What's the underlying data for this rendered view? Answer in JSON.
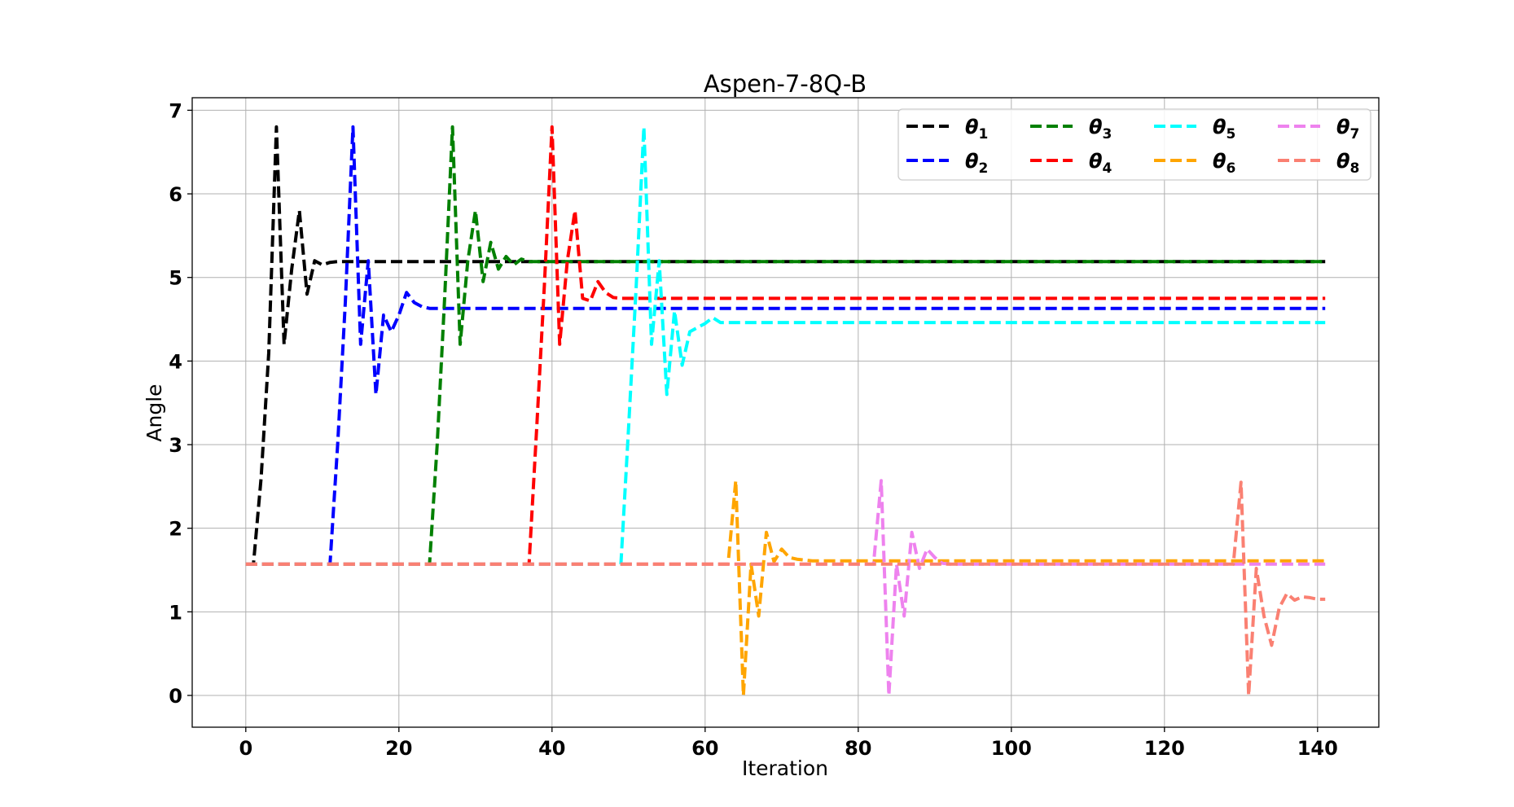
{
  "chart_data": {
    "type": "line",
    "title": "Aspen-7-8Q-B",
    "xlabel": "Iteration",
    "ylabel": "Angle",
    "xlim": [
      -7,
      148
    ],
    "ylim": [
      -0.38,
      7.15
    ],
    "xticks": [
      0,
      20,
      40,
      60,
      80,
      100,
      120,
      140
    ],
    "yticks": [
      0,
      1,
      2,
      3,
      4,
      5,
      6,
      7
    ],
    "grid": true,
    "line_style": "dashed",
    "legend": {
      "placement": "top-right",
      "columns": 4
    },
    "series": [
      {
        "name": "θ1",
        "base": "θ",
        "sub": "1",
        "color": "#000000",
        "points": [
          [
            0,
            1.57
          ],
          [
            1,
            1.57
          ],
          [
            2,
            2.6
          ],
          [
            3,
            4.1
          ],
          [
            4,
            6.8
          ],
          [
            5,
            4.2
          ],
          [
            6,
            5.1
          ],
          [
            7,
            5.8
          ],
          [
            8,
            4.8
          ],
          [
            9,
            5.2
          ],
          [
            10,
            5.15
          ],
          [
            11,
            5.18
          ],
          [
            12,
            5.19
          ],
          [
            141,
            5.19
          ]
        ]
      },
      {
        "name": "θ2",
        "base": "θ",
        "sub": "2",
        "color": "#0000ff",
        "points": [
          [
            0,
            1.57
          ],
          [
            11,
            1.57
          ],
          [
            12,
            3.0
          ],
          [
            13,
            4.7
          ],
          [
            14,
            6.8
          ],
          [
            15,
            4.2
          ],
          [
            16,
            5.2
          ],
          [
            17,
            3.6
          ],
          [
            18,
            4.55
          ],
          [
            19,
            4.35
          ],
          [
            20,
            4.55
          ],
          [
            21,
            4.82
          ],
          [
            22,
            4.7
          ],
          [
            23,
            4.65
          ],
          [
            24,
            4.63
          ],
          [
            141,
            4.63
          ]
        ]
      },
      {
        "name": "θ3",
        "base": "θ",
        "sub": "3",
        "color": "#008000",
        "points": [
          [
            0,
            1.57
          ],
          [
            24,
            1.57
          ],
          [
            25,
            3.0
          ],
          [
            26,
            4.8
          ],
          [
            27,
            6.8
          ],
          [
            28,
            4.2
          ],
          [
            29,
            5.2
          ],
          [
            30,
            5.8
          ],
          [
            31,
            4.95
          ],
          [
            32,
            5.42
          ],
          [
            33,
            5.1
          ],
          [
            34,
            5.25
          ],
          [
            35,
            5.15
          ],
          [
            36,
            5.22
          ],
          [
            37,
            5.19
          ],
          [
            141,
            5.19
          ]
        ]
      },
      {
        "name": "θ4",
        "base": "θ",
        "sub": "4",
        "color": "#ff0000",
        "points": [
          [
            0,
            1.57
          ],
          [
            37,
            1.57
          ],
          [
            38,
            3.2
          ],
          [
            39,
            4.9
          ],
          [
            40,
            6.8
          ],
          [
            41,
            4.2
          ],
          [
            42,
            5.2
          ],
          [
            43,
            5.8
          ],
          [
            44,
            4.75
          ],
          [
            45,
            4.72
          ],
          [
            46,
            4.95
          ],
          [
            47,
            4.82
          ],
          [
            48,
            4.76
          ],
          [
            49,
            4.75
          ],
          [
            141,
            4.75
          ]
        ]
      },
      {
        "name": "θ5",
        "base": "θ",
        "sub": "5",
        "color": "#00ffff",
        "points": [
          [
            0,
            1.57
          ],
          [
            49,
            1.57
          ],
          [
            50,
            3.2
          ],
          [
            51,
            4.9
          ],
          [
            52,
            6.8
          ],
          [
            53,
            4.2
          ],
          [
            54,
            5.2
          ],
          [
            55,
            3.6
          ],
          [
            56,
            4.6
          ],
          [
            57,
            3.95
          ],
          [
            58,
            4.35
          ],
          [
            59,
            4.4
          ],
          [
            60,
            4.45
          ],
          [
            61,
            4.52
          ],
          [
            62,
            4.46
          ],
          [
            63,
            4.46
          ],
          [
            141,
            4.46
          ]
        ]
      },
      {
        "name": "θ6",
        "base": "θ",
        "sub": "6",
        "color": "#ffa500",
        "points": [
          [
            0,
            1.57
          ],
          [
            63,
            1.57
          ],
          [
            64,
            2.57
          ],
          [
            65,
            0.0
          ],
          [
            66,
            1.57
          ],
          [
            67,
            0.95
          ],
          [
            68,
            1.95
          ],
          [
            69,
            1.6
          ],
          [
            70,
            1.75
          ],
          [
            71,
            1.65
          ],
          [
            72,
            1.63
          ],
          [
            73,
            1.62
          ],
          [
            74,
            1.61
          ],
          [
            141,
            1.61
          ]
        ]
      },
      {
        "name": "θ7",
        "base": "θ",
        "sub": "7",
        "color": "#ee82ee",
        "points": [
          [
            0,
            1.57
          ],
          [
            82,
            1.57
          ],
          [
            83,
            2.57
          ],
          [
            84,
            0.0
          ],
          [
            85,
            1.57
          ],
          [
            86,
            0.95
          ],
          [
            87,
            1.95
          ],
          [
            88,
            1.52
          ],
          [
            89,
            1.75
          ],
          [
            90,
            1.65
          ],
          [
            91,
            1.58
          ],
          [
            92,
            1.57
          ],
          [
            141,
            1.57
          ]
        ]
      },
      {
        "name": "θ8",
        "base": "θ",
        "sub": "8",
        "color": "#fa8072",
        "points": [
          [
            0,
            1.57
          ],
          [
            129,
            1.57
          ],
          [
            130,
            2.55
          ],
          [
            131,
            0.0
          ],
          [
            132,
            1.52
          ],
          [
            133,
            0.95
          ],
          [
            134,
            0.6
          ],
          [
            135,
            1.05
          ],
          [
            136,
            1.22
          ],
          [
            137,
            1.14
          ],
          [
            138,
            1.18
          ],
          [
            139,
            1.17
          ],
          [
            140,
            1.15
          ],
          [
            141,
            1.15
          ]
        ]
      }
    ]
  }
}
